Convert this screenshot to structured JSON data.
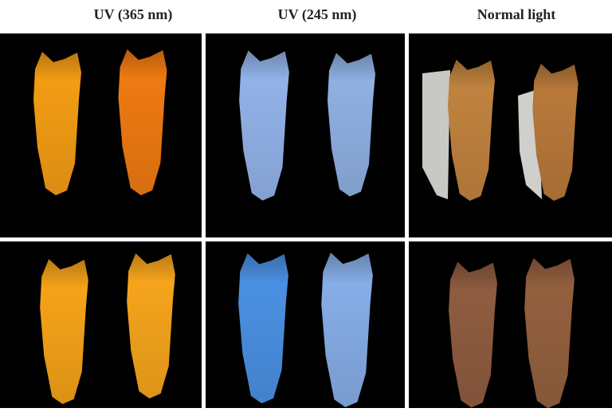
{
  "columns": [
    "UV (365 nm)",
    "UV (245 nm)",
    "Normal light"
  ]
}
